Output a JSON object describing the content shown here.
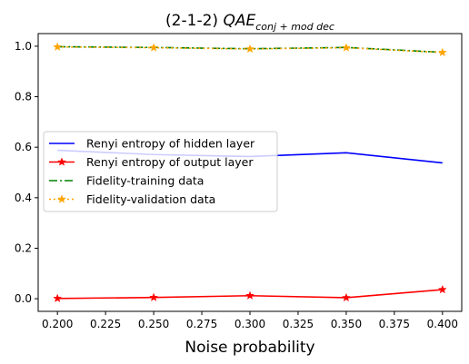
{
  "chart_data": {
    "type": "line",
    "title_main": "(2-1-2) ",
    "title_math": "QAE",
    "title_sub": "conj + mod dec",
    "xlabel": "Noise probability",
    "ylabel": "",
    "xlim": [
      0.19,
      0.41
    ],
    "ylim": [
      -0.05,
      1.05
    ],
    "x_ticks": [
      0.2,
      0.225,
      0.25,
      0.275,
      0.3,
      0.325,
      0.35,
      0.375,
      0.4
    ],
    "x_tick_labels": [
      "0.200",
      "0.225",
      "0.250",
      "0.275",
      "0.300",
      "0.325",
      "0.350",
      "0.375",
      "0.400"
    ],
    "y_ticks": [
      0.0,
      0.2,
      0.4,
      0.6,
      0.8,
      1.0
    ],
    "y_tick_labels": [
      "0.0",
      "0.2",
      "0.4",
      "0.6",
      "0.8",
      "1.0"
    ],
    "grid": false,
    "legend_position": "center-left",
    "x": [
      0.2,
      0.25,
      0.3,
      0.35,
      0.4
    ],
    "series": [
      {
        "name": "Renyi entropy of hidden layer",
        "values": [
          0.588,
          0.571,
          0.563,
          0.578,
          0.538
        ],
        "color": "#0000ff",
        "dash": "solid",
        "marker": "none"
      },
      {
        "name": "Renyi entropy of output layer",
        "values": [
          0.001,
          0.005,
          0.012,
          0.004,
          0.036
        ],
        "color": "#ff0000",
        "dash": "solid",
        "marker": "star"
      },
      {
        "name": "Fidelity-training data",
        "values": [
          0.998,
          0.995,
          0.99,
          0.995,
          0.976
        ],
        "color": "#008000",
        "dash": "dashdot",
        "marker": "none"
      },
      {
        "name": "Fidelity-validation data",
        "values": [
          0.997,
          0.994,
          0.989,
          0.994,
          0.975
        ],
        "color": "#ffa500",
        "dash": "dotted",
        "marker": "star"
      }
    ]
  }
}
